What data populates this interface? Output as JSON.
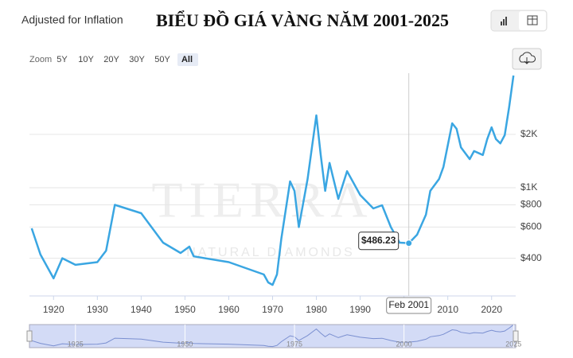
{
  "ui": {
    "toggle": "Adjusted for Inflation",
    "zoom_label": "Zoom",
    "zoom_buttons": [
      "5Y",
      "10Y",
      "20Y",
      "30Y",
      "50Y",
      "All"
    ],
    "watermark": [
      "TIERRA",
      "NATURAL DIAMONDS"
    ]
  },
  "chart_data": {
    "type": "line",
    "title": "BIỂU ĐỒ GIÁ VÀNG NĂM 2001-2025",
    "log_y": true,
    "grid": true,
    "color": "#3aa6e2",
    "x": [
      1915,
      1917,
      1920,
      1922,
      1925,
      1930,
      1932,
      1934,
      1940,
      1945,
      1949,
      1951,
      1952,
      1960,
      1968,
      1969,
      1970,
      1971,
      1972,
      1974,
      1975,
      1976,
      1978,
      1980,
      1981,
      1982,
      1983,
      1985,
      1987,
      1990,
      1993,
      1995,
      1997,
      1999,
      2001.1,
      2003,
      2005,
      2006,
      2008,
      2009,
      2011,
      2012,
      2013,
      2015,
      2016,
      2018,
      2019,
      2020,
      2021,
      2022,
      2023,
      2024,
      2025
    ],
    "values": [
      590,
      420,
      308,
      400,
      367,
      380,
      441,
      800,
      718,
      490,
      428,
      465,
      410,
      380,
      324,
      292,
      283,
      324,
      516,
      1086,
      960,
      600,
      1120,
      2560,
      1530,
      960,
      1380,
      865,
      1240,
      910,
      764,
      796,
      600,
      490,
      486.23,
      543,
      704,
      960,
      1120,
      1310,
      2310,
      2150,
      1690,
      1450,
      1610,
      1530,
      1880,
      2190,
      1880,
      1780,
      1980,
      2840,
      4300
    ],
    "xlim": [
      1914.5,
      2025.5
    ],
    "ylim": [
      245,
      4430
    ],
    "xticks": [
      1920,
      1930,
      1940,
      1950,
      1960,
      1970,
      1980,
      1990,
      2000,
      2010,
      2020
    ],
    "yticks": [
      {
        "value": 400,
        "label": "$400"
      },
      {
        "value": 600,
        "label": "$600"
      },
      {
        "value": 800,
        "label": "$800"
      },
      {
        "value": 1000,
        "label": "$1K"
      },
      {
        "value": 2000,
        "label": "$2K"
      }
    ],
    "annotation": {
      "x": 2001.1,
      "y": 486.23,
      "label": "$486.23",
      "x_label": "Feb 2001"
    },
    "navigator": {
      "xticks": [
        1925,
        1950,
        1975,
        2000,
        2025
      ]
    }
  }
}
